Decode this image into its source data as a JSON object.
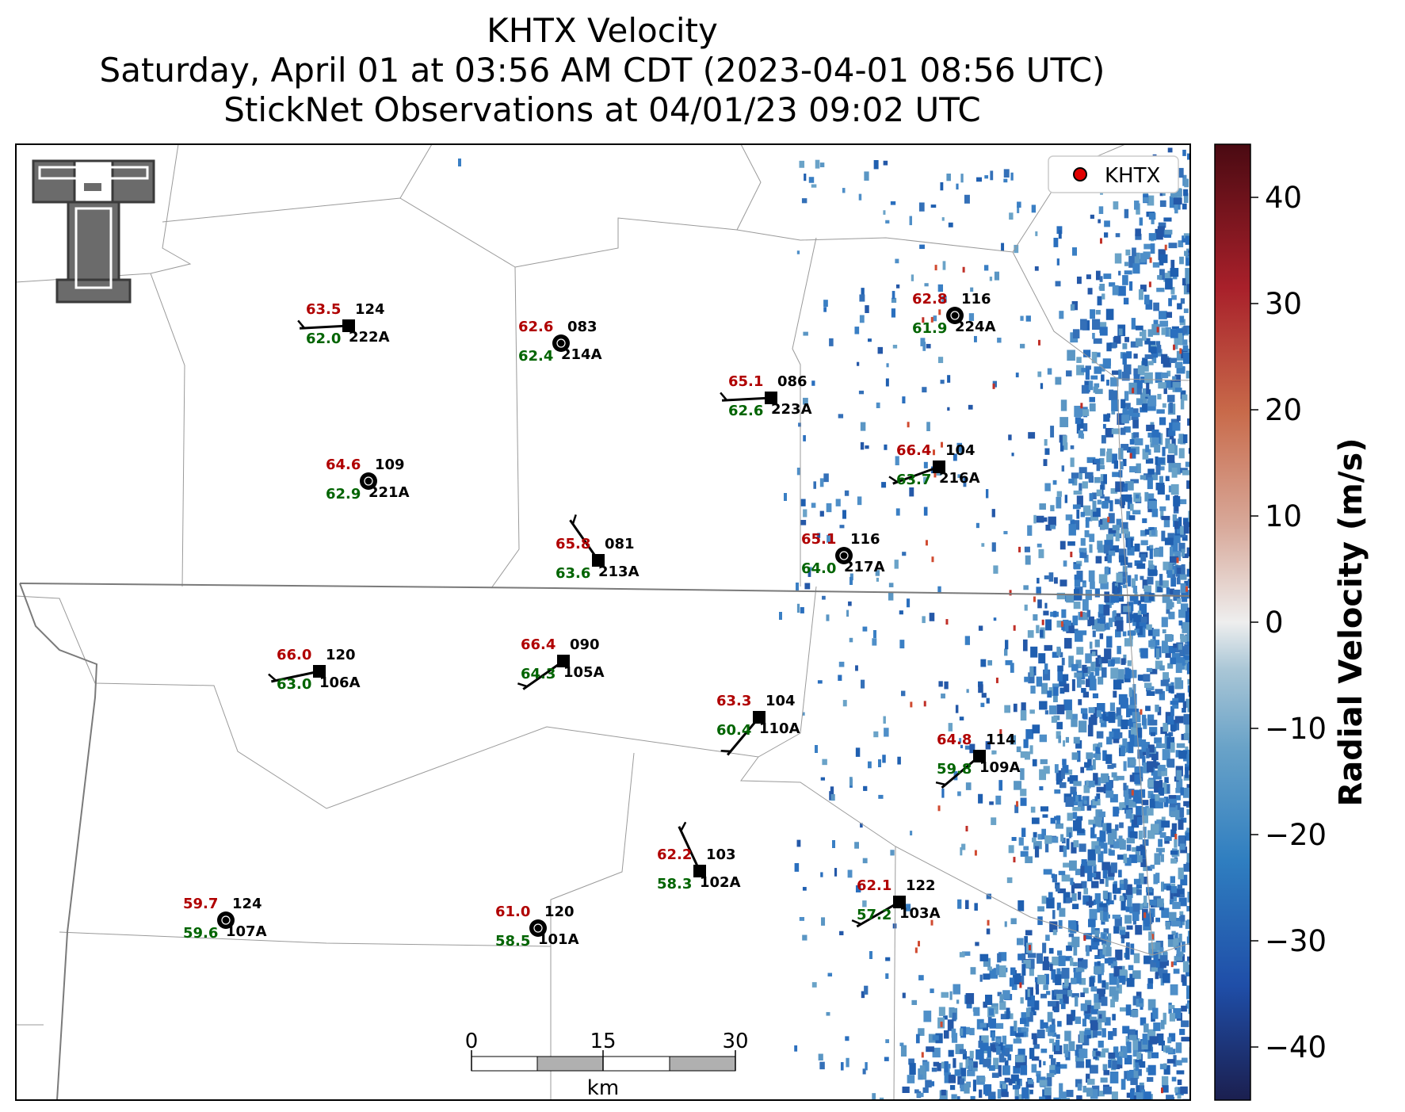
{
  "title": {
    "line1": "KHTX Velocity",
    "line2": "Saturday, April 01 at 03:56 AM CDT (2023-04-01 08:56 UTC)",
    "line3": "StickNet Observations at 04/01/23 09:02 UTC"
  },
  "legend": {
    "label": "KHTX",
    "marker_color": "#e00000"
  },
  "colorbar": {
    "label": "Radial Velocity (m/s)",
    "ticks": [
      "40",
      "30",
      "20",
      "10",
      "0",
      "−10",
      "−20",
      "−30",
      "−40"
    ],
    "tick_values": [
      40,
      30,
      20,
      10,
      0,
      -10,
      -20,
      -30,
      -40
    ],
    "range": [
      -45,
      45
    ],
    "colors": [
      "#1b1f4f",
      "#1f4ea8",
      "#2f7ec0",
      "#6aa3c8",
      "#a9c6d6",
      "#eeeeee",
      "#d8a99a",
      "#c86a4a",
      "#a8202a",
      "#4a0a12"
    ]
  },
  "scalebar": {
    "labels": [
      "0",
      "15",
      "30"
    ],
    "unit": "km"
  },
  "logo": {
    "name": "Texas Tech Double T",
    "text": "TT"
  },
  "stations": [
    {
      "id": "222A",
      "temp": "63.5",
      "dew": "62.0",
      "dir": "124",
      "marker": "square",
      "wind": true
    },
    {
      "id": "214A",
      "temp": "62.6",
      "dew": "62.4",
      "dir": "083",
      "marker": "circle",
      "wind": false
    },
    {
      "id": "223A",
      "temp": "65.1",
      "dew": "62.6",
      "dir": "086",
      "marker": "square",
      "wind": true
    },
    {
      "id": "224A",
      "temp": "62.8",
      "dew": "61.9",
      "dir": "116",
      "marker": "circle",
      "wind": false
    },
    {
      "id": "221A",
      "temp": "64.6",
      "dew": "62.9",
      "dir": "109",
      "marker": "circle",
      "wind": false
    },
    {
      "id": "216A",
      "temp": "66.4",
      "dew": "63.7",
      "dir": "104",
      "marker": "square",
      "wind": true
    },
    {
      "id": "213A",
      "temp": "65.8",
      "dew": "63.6",
      "dir": "081",
      "marker": "square",
      "wind": true
    },
    {
      "id": "217A",
      "temp": "65.1",
      "dew": "64.0",
      "dir": "116",
      "marker": "circle",
      "wind": false
    },
    {
      "id": "106A",
      "temp": "66.0",
      "dew": "63.0",
      "dir": "120",
      "marker": "square",
      "wind": true
    },
    {
      "id": "105A",
      "temp": "66.4",
      "dew": "64.3",
      "dir": "090",
      "marker": "square",
      "wind": true
    },
    {
      "id": "110A",
      "temp": "63.3",
      "dew": "60.4",
      "dir": "104",
      "marker": "square",
      "wind": true
    },
    {
      "id": "109A",
      "temp": "64.8",
      "dew": "59.8",
      "dir": "114",
      "marker": "square",
      "wind": true
    },
    {
      "id": "102A",
      "temp": "62.2",
      "dew": "58.3",
      "dir": "103",
      "marker": "square",
      "wind": true
    },
    {
      "id": "103A",
      "temp": "62.1",
      "dew": "57.2",
      "dir": "122",
      "marker": "square",
      "wind": true
    },
    {
      "id": "107A",
      "temp": "59.7",
      "dew": "59.6",
      "dir": "124",
      "marker": "circle",
      "wind": false
    },
    {
      "id": "101A",
      "temp": "61.0",
      "dew": "58.5",
      "dir": "120",
      "marker": "circle",
      "wind": false
    }
  ]
}
